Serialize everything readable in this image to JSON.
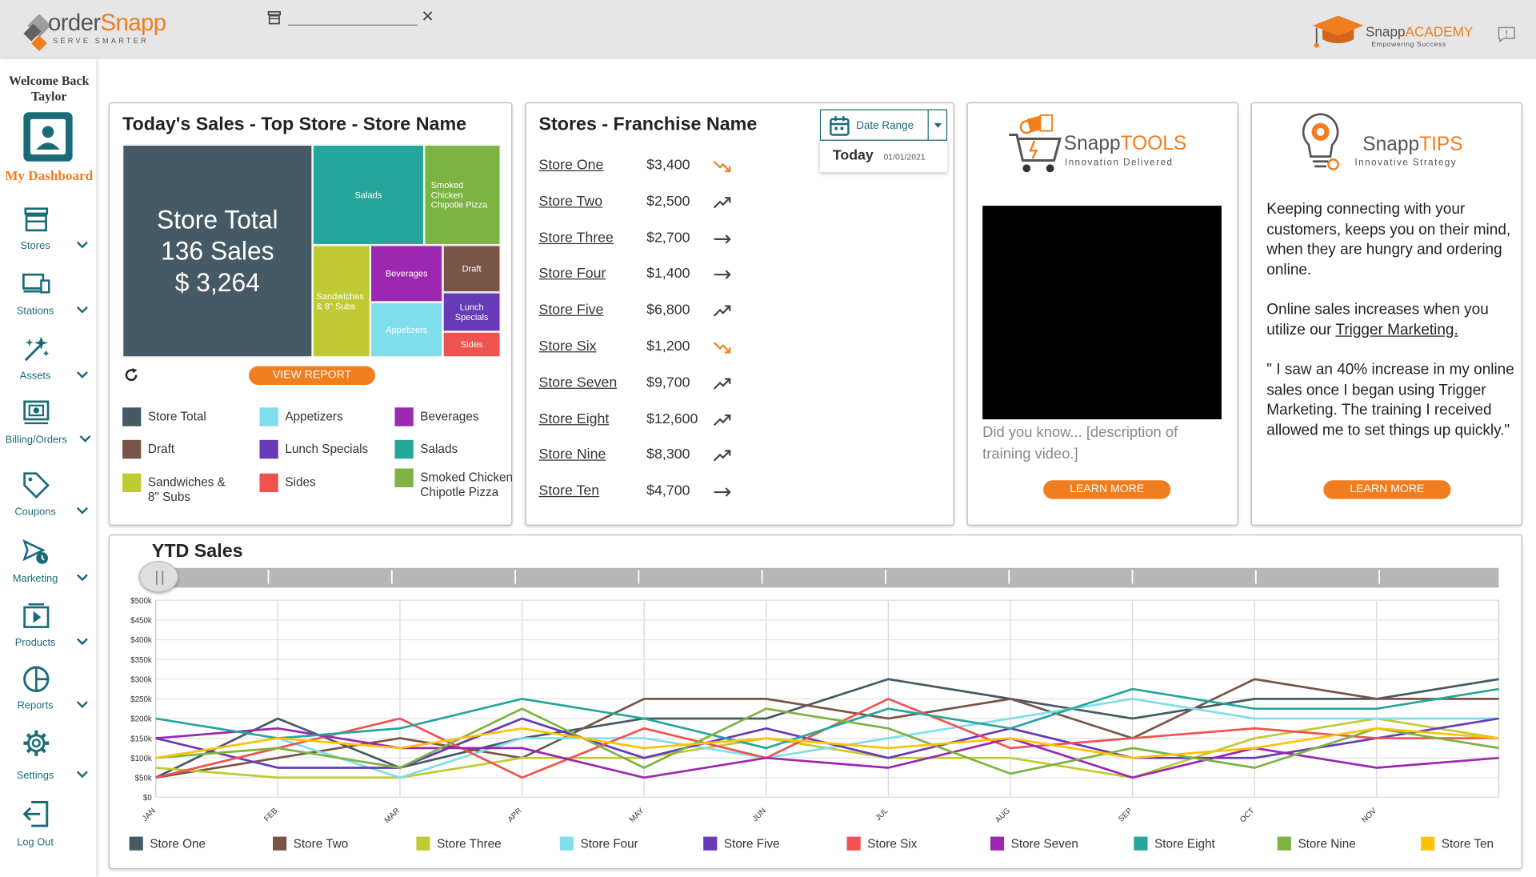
{
  "header": {
    "brand": "order",
    "brand_accent": "Snapp",
    "tagline": "SERVE SMARTER",
    "search_placeholder": "",
    "academy_brand": "Snapp",
    "academy_accent": "ACADEMY",
    "academy_tag": "Empowering Success"
  },
  "sidebar": {
    "welcome_line1": "Welcome Back",
    "welcome_line2": "Taylor",
    "dashboard_label": "My Dashboard",
    "items": [
      {
        "label": "Stores",
        "icon": "store-icon"
      },
      {
        "label": "Stations",
        "icon": "stations-icon"
      },
      {
        "label": "Assets",
        "icon": "assets-icon"
      },
      {
        "label": "Billing/Orders",
        "icon": "billing-icon"
      },
      {
        "label": "Coupons",
        "icon": "coupon-icon"
      },
      {
        "label": "Marketing",
        "icon": "marketing-icon"
      },
      {
        "label": "Products",
        "icon": "products-icon"
      },
      {
        "label": "Reports",
        "icon": "reports-icon"
      },
      {
        "label": "Settings",
        "icon": "gear-icon"
      }
    ],
    "logout_label": "Log Out"
  },
  "todays_sales": {
    "title": "Today's Sales - Top Store - Store Name",
    "store_total_line1": "Store Total",
    "store_total_line2": "136 Sales",
    "store_total_line3": "$ 3,264",
    "view_report": "VIEW REPORT",
    "tiles": {
      "salads": "Salads",
      "smoked": "Smoked Chicken Chipotle Pizza",
      "sandwiches": "Sandwiches & 8\" Subs",
      "beverages": "Beverages",
      "draft": "Draft",
      "appetizers": "Appetizers",
      "lunch": "Lunch Specials",
      "sides": "Sides"
    },
    "legend": [
      {
        "label": "Store Total",
        "color": "#455a64"
      },
      {
        "label": "Appetizers",
        "color": "#80deea"
      },
      {
        "label": "Beverages",
        "color": "#9c27b0"
      },
      {
        "label": "Draft",
        "color": "#795548"
      },
      {
        "label": "Lunch Specials",
        "color": "#673ab7"
      },
      {
        "label": "Salads",
        "color": "#26a69a"
      },
      {
        "label": "Sandwiches & 8\" Subs",
        "color": "#c0ca33"
      },
      {
        "label": "Sides",
        "color": "#ef5350"
      },
      {
        "label": "Smoked Chicken Chipotle Pizza",
        "color": "#7cb342"
      }
    ]
  },
  "stores": {
    "title": "Stores - Franchise Name",
    "date_range_label": "Date Range",
    "today_label": "Today",
    "today_date": "01/01/2021",
    "rows": [
      {
        "name": "Store One",
        "amount": "$3,400",
        "trend": "down"
      },
      {
        "name": "Store Two",
        "amount": "$2,500",
        "trend": "up"
      },
      {
        "name": "Store Three",
        "amount": "$2,700",
        "trend": "flat"
      },
      {
        "name": "Store Four",
        "amount": "$1,400",
        "trend": "flat"
      },
      {
        "name": "Store Five",
        "amount": "$6,800",
        "trend": "up"
      },
      {
        "name": "Store Six",
        "amount": "$1,200",
        "trend": "down"
      },
      {
        "name": "Store Seven",
        "amount": "$9,700",
        "trend": "up"
      },
      {
        "name": "Store Eight",
        "amount": "$12,600",
        "trend": "up"
      },
      {
        "name": "Store Nine",
        "amount": "$8,300",
        "trend": "up"
      },
      {
        "name": "Store Ten",
        "amount": "$4,700",
        "trend": "flat"
      }
    ]
  },
  "tools": {
    "brand": "Snapp",
    "brand_accent": "TOOLS",
    "tagline": "Innovation Delivered",
    "description": "Did you know... [description of training video.]",
    "learn_more": "LEARN MORE"
  },
  "tips": {
    "brand": "Snapp",
    "brand_accent": "TIPS",
    "tagline": "Innovative Strategy",
    "para1": "Keeping connecting with your customers, keeps you on their mind, when they are hungry and ordering online.",
    "para2_prefix": "Online sales increases when you utilize our ",
    "para2_link": "Trigger Marketing.",
    "para3": "\" I saw an 40% increase in my online sales once I began using Trigger Marketing. The training I received allowed me to set things up quickly.\"",
    "learn_more": "LEARN MORE"
  },
  "colors": {
    "accent": "#f07d1e",
    "teal": "#1a6b78",
    "trend_down": "#f07d1e",
    "trend_up": "#444444"
  },
  "chart_data": {
    "type": "line",
    "title": "YTD Sales",
    "xlabel": "",
    "ylabel": "",
    "ylim": [
      0,
      500000
    ],
    "yticks": [
      "$0",
      "$50k",
      "$100k",
      "$150k",
      "$200k",
      "$250k",
      "$300k",
      "$350k",
      "$400k",
      "$450k",
      "$500k"
    ],
    "x": [
      "JAN",
      "FEB",
      "MAR",
      "APR",
      "MAY",
      "JUN",
      "JUL",
      "AUG",
      "SEP",
      "OCT",
      "NOV",
      ""
    ],
    "grid": true,
    "legend_position": "bottom",
    "series": [
      {
        "name": "Store One",
        "color": "#455a64",
        "values": [
          50000,
          200000,
          75000,
          150000,
          200000,
          200000,
          300000,
          250000,
          200000,
          250000,
          250000,
          300000
        ]
      },
      {
        "name": "Store Two",
        "color": "#795548",
        "values": [
          50000,
          100000,
          150000,
          100000,
          250000,
          250000,
          200000,
          250000,
          150000,
          300000,
          250000,
          250000
        ]
      },
      {
        "name": "Store Three",
        "color": "#c0ca33",
        "values": [
          75000,
          50000,
          50000,
          100000,
          100000,
          150000,
          100000,
          100000,
          50000,
          150000,
          200000,
          150000
        ]
      },
      {
        "name": "Store Four",
        "color": "#80deea",
        "values": [
          100000,
          150000,
          50000,
          150000,
          150000,
          100000,
          150000,
          200000,
          250000,
          200000,
          200000,
          200000
        ]
      },
      {
        "name": "Store Five",
        "color": "#673ab7",
        "values": [
          150000,
          75000,
          75000,
          200000,
          100000,
          175000,
          100000,
          175000,
          100000,
          100000,
          150000,
          200000
        ]
      },
      {
        "name": "Store Six",
        "color": "#ef5350",
        "values": [
          50000,
          125000,
          200000,
          50000,
          175000,
          100000,
          250000,
          125000,
          150000,
          175000,
          150000,
          150000
        ]
      },
      {
        "name": "Store Seven",
        "color": "#9c27b0",
        "values": [
          150000,
          175000,
          125000,
          125000,
          50000,
          100000,
          75000,
          150000,
          50000,
          125000,
          75000,
          100000
        ]
      },
      {
        "name": "Store Eight",
        "color": "#26a69a",
        "values": [
          200000,
          150000,
          175000,
          250000,
          200000,
          125000,
          225000,
          175000,
          275000,
          225000,
          225000,
          275000
        ]
      },
      {
        "name": "Store Nine",
        "color": "#7cb342",
        "values": [
          100000,
          125000,
          75000,
          225000,
          75000,
          225000,
          175000,
          60000,
          125000,
          75000,
          175000,
          125000
        ]
      },
      {
        "name": "Store Ten",
        "color": "#ffc107",
        "values": [
          100000,
          150000,
          125000,
          175000,
          125000,
          150000,
          125000,
          150000,
          100000,
          125000,
          175000,
          150000
        ]
      }
    ]
  }
}
